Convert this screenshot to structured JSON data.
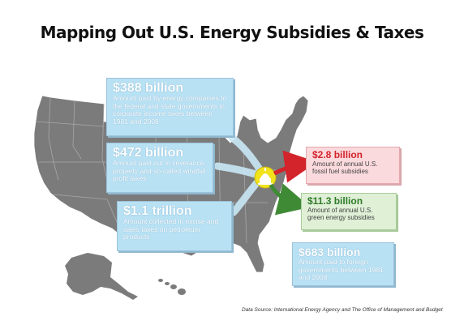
{
  "title": "Mapping Out U.S. Energy Subsidies & Taxes",
  "boxes": {
    "corporate": {
      "amount": "$388 billion",
      "desc": "Amount paid by energy companies to the federal and state governments in corporate income taxes between 1981 and 2008"
    },
    "severance": {
      "amount": "$472 billion",
      "desc": "Amount paid out in severance, property and so-called windfall profit taxes"
    },
    "excise": {
      "amount": "$1.1 trillion",
      "desc": "Amount collected in excise and sales taxes on petroleum products"
    },
    "fossil": {
      "amount": "$2.8 billion",
      "desc": "Amount of annual U.S. fossil fuel subsidies"
    },
    "green": {
      "amount": "$11.3 billion",
      "desc": "Amount of annual U.S. green energy subsidies"
    },
    "foreign": {
      "amount": "$683 billion",
      "desc": "Amount paid to foreign governments  between 1981 and 2008"
    }
  },
  "source": "Data Source: International Energy Agency and The Office of Management and Budget",
  "colors": {
    "map": "#7b7b7b",
    "box_blue": "#b8e1f4",
    "arrow_red": "#d3232b",
    "arrow_green": "#3f8a35",
    "capitol": "#f2e21c"
  },
  "icons": {
    "center": "capitol-dome-icon"
  }
}
